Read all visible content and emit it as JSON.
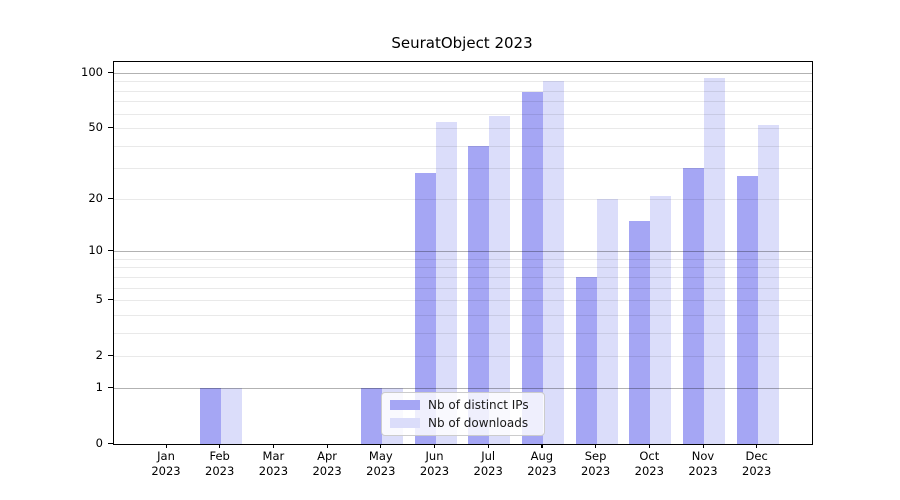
{
  "figure": {
    "title": "SeuratObject 2023"
  },
  "chart_data": {
    "type": "bar",
    "title": "SeuratObject 2023",
    "categories": [
      "Jan",
      "Feb",
      "Mar",
      "Apr",
      "May",
      "Jun",
      "Jul",
      "Aug",
      "Sep",
      "Oct",
      "Nov",
      "Dec"
    ],
    "x_year_label": "2023",
    "series": [
      {
        "name": "Nb of distinct IPs",
        "color": "#a5a6f4",
        "values": [
          0,
          1,
          0,
          0,
          1,
          28,
          40,
          79,
          7,
          15,
          30,
          27
        ]
      },
      {
        "name": "Nb of downloads",
        "color": "#dbddfa",
        "values": [
          0,
          1,
          0,
          0,
          1,
          54,
          58,
          90,
          20,
          21,
          94,
          52
        ]
      }
    ],
    "xlabel": "",
    "ylabel": "",
    "yscale": "log1p",
    "ylim": [
      0,
      115
    ],
    "y_tick_labels": [
      "0",
      "1",
      "2",
      "5",
      "10",
      "20",
      "50",
      "100"
    ],
    "y_tick_values": [
      0,
      1,
      2,
      5,
      10,
      20,
      50,
      100
    ],
    "y_gridline_major_values": [
      1,
      10,
      100
    ],
    "y_gridline_minor_values": [
      2,
      3,
      4,
      5,
      6,
      7,
      8,
      9,
      20,
      30,
      40,
      50,
      60,
      70,
      80,
      90
    ],
    "grid": true,
    "legend_position": "lower center"
  },
  "colors": {
    "bar_distinct_ips": "#a5a6f4",
    "bar_downloads": "#dbddfa",
    "grid_major": "#b3b3b3",
    "grid_minor": "#e9e9e9",
    "spine": "#000000"
  }
}
